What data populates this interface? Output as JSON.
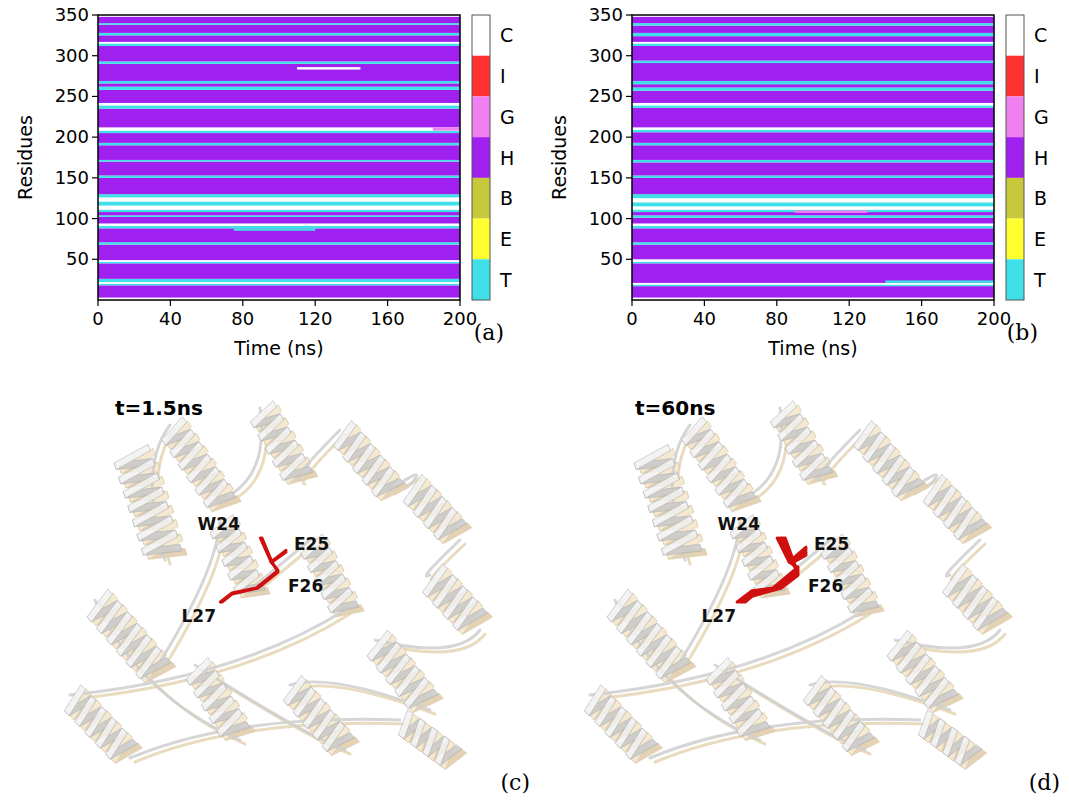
{
  "chart_data": [
    {
      "type": "heatmap",
      "panel_label": "(a)",
      "xlabel": "Time (ns)",
      "ylabel": "Residues",
      "xlim": [
        0,
        200
      ],
      "xticks": [
        0,
        40,
        80,
        120,
        160,
        200
      ],
      "ylim": [
        0,
        350
      ],
      "yticks": [
        50,
        100,
        150,
        200,
        250,
        300,
        350
      ],
      "states": [
        "C",
        "I",
        "G",
        "H",
        "B",
        "E",
        "T"
      ],
      "colors": [
        "#ffffff",
        "#ff3030",
        "#f080f0",
        "#a020f0",
        "#c8c83c",
        "#ffff30",
        "#40e0e8"
      ],
      "bands": [
        [
          1,
          3,
          "C"
        ],
        [
          4,
          18,
          "H"
        ],
        [
          19,
          20,
          "T"
        ],
        [
          21,
          22,
          "C"
        ],
        [
          23,
          26,
          "T"
        ],
        [
          27,
          45,
          "H"
        ],
        [
          46,
          47,
          "T"
        ],
        [
          48,
          49,
          "C"
        ],
        [
          50,
          68,
          "H"
        ],
        [
          69,
          71,
          "T"
        ],
        [
          72,
          88,
          "H"
        ],
        [
          89,
          91,
          "T"
        ],
        [
          92,
          94,
          "C"
        ],
        [
          95,
          102,
          "H"
        ],
        [
          103,
          104,
          "T"
        ],
        [
          105,
          108,
          "H"
        ],
        [
          109,
          111,
          "T"
        ],
        [
          112,
          116,
          "C"
        ],
        [
          117,
          121,
          "T"
        ],
        [
          122,
          126,
          "C"
        ],
        [
          127,
          130,
          "T"
        ],
        [
          131,
          150,
          "H"
        ],
        [
          151,
          153,
          "T"
        ],
        [
          154,
          170,
          "H"
        ],
        [
          171,
          172,
          "T"
        ],
        [
          173,
          190,
          "H"
        ],
        [
          191,
          193,
          "T"
        ],
        [
          194,
          205,
          "H"
        ],
        [
          206,
          208,
          "T"
        ],
        [
          209,
          212,
          "C"
        ],
        [
          213,
          235,
          "H"
        ],
        [
          236,
          239,
          "T"
        ],
        [
          240,
          242,
          "C"
        ],
        [
          243,
          258,
          "H"
        ],
        [
          259,
          262,
          "T"
        ],
        [
          263,
          266,
          "H"
        ],
        [
          267,
          269,
          "T"
        ],
        [
          270,
          290,
          "H"
        ],
        [
          291,
          293,
          "T"
        ],
        [
          294,
          312,
          "H"
        ],
        [
          313,
          315,
          "T"
        ],
        [
          316,
          317,
          "C"
        ],
        [
          318,
          325,
          "H"
        ],
        [
          326,
          328,
          "T"
        ],
        [
          329,
          338,
          "H"
        ],
        [
          339,
          340,
          "T"
        ],
        [
          341,
          348,
          "H"
        ],
        [
          349,
          350,
          "C"
        ]
      ],
      "transients": [
        {
          "time": [
            110,
            145
          ],
          "residues": [
            284,
            286
          ],
          "state": "C"
        },
        {
          "time": [
            185,
            200
          ],
          "residues": [
            209,
            212
          ],
          "state": "G"
        },
        {
          "time": [
            75,
            120
          ],
          "residues": [
            86,
            88
          ],
          "state": "T"
        }
      ]
    },
    {
      "type": "heatmap",
      "panel_label": "(b)",
      "xlabel": "Time (ns)",
      "ylabel": "Residues",
      "xlim": [
        0,
        200
      ],
      "xticks": [
        0,
        40,
        80,
        120,
        160,
        200
      ],
      "ylim": [
        0,
        350
      ],
      "yticks": [
        50,
        100,
        150,
        200,
        250,
        300,
        350
      ],
      "states": [
        "C",
        "I",
        "G",
        "H",
        "B",
        "E",
        "T"
      ],
      "colors": [
        "#ffffff",
        "#ff3030",
        "#f080f0",
        "#a020f0",
        "#c8c83c",
        "#ffff30",
        "#40e0e8"
      ],
      "bands": [
        [
          1,
          3,
          "C"
        ],
        [
          4,
          17,
          "H"
        ],
        [
          18,
          19,
          "T"
        ],
        [
          20,
          21,
          "C"
        ],
        [
          22,
          27,
          "H"
        ],
        [
          28,
          45,
          "H"
        ],
        [
          46,
          47,
          "T"
        ],
        [
          48,
          50,
          "C"
        ],
        [
          51,
          68,
          "H"
        ],
        [
          69,
          71,
          "T"
        ],
        [
          72,
          88,
          "H"
        ],
        [
          89,
          91,
          "T"
        ],
        [
          92,
          94,
          "C"
        ],
        [
          95,
          101,
          "H"
        ],
        [
          102,
          104,
          "T"
        ],
        [
          105,
          108,
          "H"
        ],
        [
          109,
          111,
          "T"
        ],
        [
          112,
          115,
          "C"
        ],
        [
          116,
          120,
          "T"
        ],
        [
          121,
          125,
          "C"
        ],
        [
          126,
          130,
          "T"
        ],
        [
          131,
          150,
          "H"
        ],
        [
          151,
          153,
          "T"
        ],
        [
          154,
          169,
          "H"
        ],
        [
          170,
          172,
          "T"
        ],
        [
          173,
          190,
          "H"
        ],
        [
          191,
          193,
          "T"
        ],
        [
          194,
          206,
          "H"
        ],
        [
          207,
          209,
          "T"
        ],
        [
          210,
          212,
          "C"
        ],
        [
          213,
          236,
          "H"
        ],
        [
          237,
          239,
          "T"
        ],
        [
          240,
          242,
          "C"
        ],
        [
          243,
          257,
          "H"
        ],
        [
          258,
          261,
          "T"
        ],
        [
          262,
          265,
          "H"
        ],
        [
          266,
          269,
          "T"
        ],
        [
          270,
          291,
          "H"
        ],
        [
          292,
          294,
          "T"
        ],
        [
          295,
          312,
          "H"
        ],
        [
          313,
          315,
          "T"
        ],
        [
          316,
          317,
          "C"
        ],
        [
          318,
          324,
          "H"
        ],
        [
          325,
          328,
          "T"
        ],
        [
          329,
          337,
          "H"
        ],
        [
          338,
          340,
          "T"
        ],
        [
          341,
          348,
          "H"
        ],
        [
          349,
          350,
          "C"
        ]
      ],
      "transients": [
        {
          "time": [
            90,
            130
          ],
          "residues": [
            108,
            110
          ],
          "state": "G"
        },
        {
          "time": [
            140,
            200
          ],
          "residues": [
            22,
            24
          ],
          "state": "T"
        }
      ]
    }
  ],
  "structures": [
    {
      "time_label": "t=1.5ns",
      "panel_label": "(c)",
      "residues": [
        "W24",
        "E25",
        "F26",
        "L27"
      ]
    },
    {
      "time_label": "t=60ns",
      "panel_label": "(d)",
      "residues": [
        "W24",
        "E25",
        "F26",
        "L27"
      ]
    }
  ]
}
